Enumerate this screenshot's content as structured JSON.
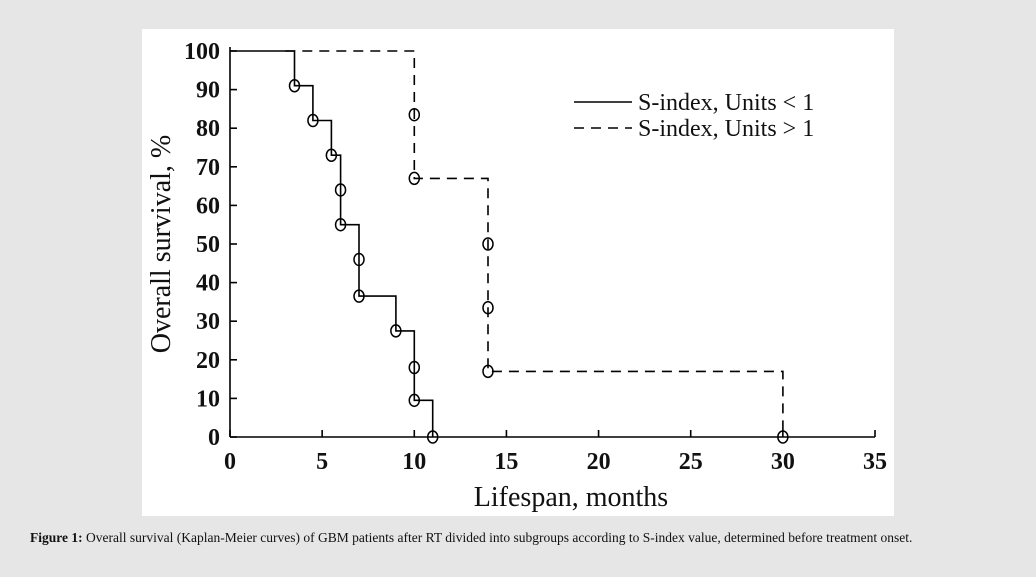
{
  "chart_data": {
    "type": "line",
    "subtype": "kaplan-meier step",
    "title": "",
    "xlabel": "Lifespan, months",
    "ylabel": "Overall survival, %",
    "xlim": [
      0,
      35
    ],
    "ylim": [
      0,
      100
    ],
    "xticks": [
      0,
      5,
      10,
      15,
      20,
      25,
      30,
      35
    ],
    "yticks": [
      0,
      10,
      20,
      30,
      40,
      50,
      60,
      70,
      80,
      90,
      100
    ],
    "legend_position": "top-right",
    "series": [
      {
        "name": "S-index, Units < 1",
        "style": "solid",
        "color": "#000000",
        "steps": [
          [
            0,
            100
          ],
          [
            3.5,
            100
          ],
          [
            3.5,
            91
          ],
          [
            4.5,
            91
          ],
          [
            4.5,
            82
          ],
          [
            5.5,
            82
          ],
          [
            5.5,
            73
          ],
          [
            6,
            73
          ],
          [
            6,
            55
          ],
          [
            7,
            55
          ],
          [
            7,
            36.5
          ],
          [
            9,
            36.5
          ],
          [
            9,
            27.5
          ],
          [
            10,
            27.5
          ],
          [
            10,
            9.5
          ],
          [
            11,
            9.5
          ],
          [
            11,
            0
          ]
        ],
        "censored": [
          [
            3.5,
            91
          ],
          [
            4.5,
            82
          ],
          [
            5.5,
            73
          ],
          [
            6,
            64
          ],
          [
            6,
            55
          ],
          [
            7,
            46
          ],
          [
            7,
            36.5
          ],
          [
            9,
            27.5
          ],
          [
            10,
            18
          ],
          [
            10,
            9.5
          ],
          [
            11,
            0
          ]
        ]
      },
      {
        "name": "S-index, Units > 1",
        "style": "dashed",
        "color": "#000000",
        "steps": [
          [
            3,
            100
          ],
          [
            10,
            100
          ],
          [
            10,
            67
          ],
          [
            14,
            67
          ],
          [
            14,
            17
          ],
          [
            30,
            17
          ],
          [
            30,
            0
          ]
        ],
        "censored": [
          [
            10,
            83.5
          ],
          [
            10,
            67
          ],
          [
            14,
            50
          ],
          [
            14,
            33.5
          ],
          [
            14,
            17
          ],
          [
            30,
            0
          ]
        ]
      }
    ]
  },
  "caption": {
    "label": "Figure 1:",
    "text": " Overall survival (Kaplan-Meier curves) of GBM patients after RT divided into subgroups according to S-index value, determined before treatment onset."
  }
}
